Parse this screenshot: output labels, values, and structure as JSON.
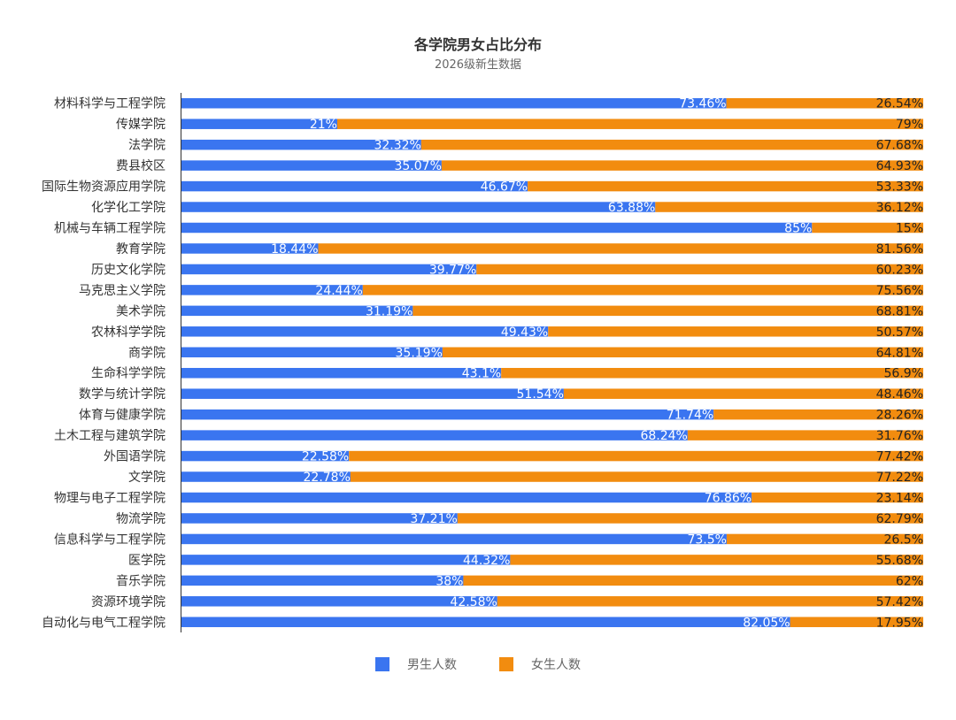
{
  "title": "各学院男女占比分布",
  "subtitle": "2026级新生数据",
  "colors": {
    "male": "#3a75f0",
    "female": "#f28c0f",
    "axis": "#333333"
  },
  "chart_data": {
    "type": "bar",
    "orientation": "horizontal",
    "stacked": true,
    "title": "各学院男女占比分布",
    "subtitle": "2026级新生数据",
    "xlim": [
      0,
      100
    ],
    "unit": "%",
    "legend_position": "bottom",
    "grid": false,
    "categories": [
      "材料科学与工程学院",
      "传媒学院",
      "法学院",
      "费县校区",
      "国际生物资源应用学院",
      "化学化工学院",
      "机械与车辆工程学院",
      "教育学院",
      "历史文化学院",
      "马克思主义学院",
      "美术学院",
      "农林科学学院",
      "商学院",
      "生命科学学院",
      "数学与统计学院",
      "体育与健康学院",
      "土木工程与建筑学院",
      "外国语学院",
      "文学院",
      "物理与电子工程学院",
      "物流学院",
      "信息科学与工程学院",
      "医学院",
      "音乐学院",
      "资源环境学院",
      "自动化与电气工程学院"
    ],
    "series": [
      {
        "name": "男生人数",
        "color": "#3a75f0",
        "values": [
          73.46,
          21,
          32.32,
          35.07,
          46.67,
          63.88,
          85,
          18.44,
          39.77,
          24.44,
          31.19,
          49.43,
          35.19,
          43.1,
          51.54,
          71.74,
          68.24,
          22.58,
          22.78,
          76.86,
          37.21,
          73.5,
          44.32,
          38,
          42.58,
          82.05
        ],
        "labels": [
          "73.46%",
          "21%",
          "32.32%",
          "35.07%",
          "46.67%",
          "63.88%",
          "85%",
          "18.44%",
          "39.77%",
          "24.44%",
          "31.19%",
          "49.43%",
          "35.19%",
          "43.1%",
          "51.54%",
          "71.74%",
          "68.24%",
          "22.58%",
          "22.78%",
          "76.86%",
          "37.21%",
          "73.5%",
          "44.32%",
          "38%",
          "42.58%",
          "82.05%"
        ]
      },
      {
        "name": "女生人数",
        "color": "#f28c0f",
        "values": [
          26.54,
          79,
          67.68,
          64.93,
          53.33,
          36.12,
          15,
          81.56,
          60.23,
          75.56,
          68.81,
          50.57,
          64.81,
          56.9,
          48.46,
          28.26,
          31.76,
          77.42,
          77.22,
          23.14,
          62.79,
          26.5,
          55.68,
          62,
          57.42,
          17.95
        ],
        "labels": [
          "26.54%",
          "79%",
          "67.68%",
          "64.93%",
          "53.33%",
          "36.12%",
          "15%",
          "81.56%",
          "60.23%",
          "75.56%",
          "68.81%",
          "50.57%",
          "64.81%",
          "56.9%",
          "48.46%",
          "28.26%",
          "31.76%",
          "77.42%",
          "77.22%",
          "23.14%",
          "62.79%",
          "26.5%",
          "55.68%",
          "62%",
          "57.42%",
          "17.95%"
        ]
      }
    ]
  },
  "legend": {
    "male_label": "男生人数",
    "female_label": "女生人数"
  }
}
